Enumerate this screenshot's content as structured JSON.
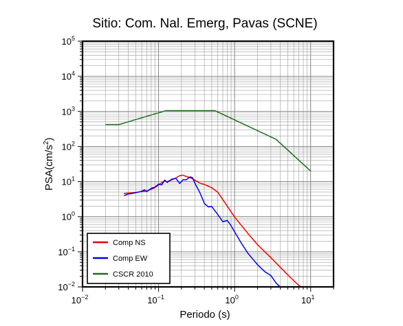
{
  "chart_data": {
    "type": "line",
    "title": "Sitio: Com. Nal. Emerg, Pavas (SCNE)",
    "xlabel": "Periodo (s)",
    "ylabel_main": "PSA(cm/s",
    "ylabel_sup": "2",
    "ylabel_tail": ")",
    "xscale": "log",
    "yscale": "log",
    "xlim": [
      0.01,
      20
    ],
    "ylim": [
      0.01,
      100000
    ],
    "grid": true,
    "legend_position": "bottom-left",
    "x_tick_labels": [
      {
        "exp": -2,
        "base": "10",
        "sup": "−2"
      },
      {
        "exp": -1,
        "base": "10",
        "sup": "−1"
      },
      {
        "exp": 0,
        "base": "10",
        "sup": "0"
      },
      {
        "exp": 1,
        "base": "10",
        "sup": "1"
      }
    ],
    "y_tick_labels": [
      {
        "exp": -2,
        "base": "10",
        "sup": "−2"
      },
      {
        "exp": -1,
        "base": "10",
        "sup": "−1"
      },
      {
        "exp": 0,
        "base": "10",
        "sup": "0"
      },
      {
        "exp": 1,
        "base": "10",
        "sup": "1"
      },
      {
        "exp": 2,
        "base": "10",
        "sup": "2"
      },
      {
        "exp": 3,
        "base": "10",
        "sup": "3"
      },
      {
        "exp": 4,
        "base": "10",
        "sup": "4"
      },
      {
        "exp": 5,
        "base": "10",
        "sup": "5"
      }
    ],
    "series": [
      {
        "name": "Comp NS",
        "color": "#ee0000",
        "x": [
          0.035,
          0.05,
          0.06,
          0.07,
          0.08,
          0.09,
          0.1,
          0.11,
          0.12,
          0.13,
          0.15,
          0.17,
          0.19,
          0.21,
          0.23,
          0.26,
          0.3,
          0.35,
          0.4,
          0.5,
          0.6,
          0.8,
          1.0,
          1.5,
          2.0,
          3.0,
          4.0,
          5.0,
          6.0,
          7.0,
          7.6
        ],
        "y": [
          4.6,
          4.9,
          5.2,
          5.4,
          6.0,
          6.8,
          8.0,
          9.3,
          10.2,
          10.0,
          11.2,
          12.8,
          14.8,
          15.2,
          14.0,
          13.0,
          11.0,
          9.0,
          8.3,
          6.7,
          5.0,
          2.0,
          0.98,
          0.33,
          0.16,
          0.068,
          0.036,
          0.022,
          0.015,
          0.011,
          0.0098
        ]
      },
      {
        "name": "Comp EW",
        "color": "#0000ee",
        "x": [
          0.035,
          0.04,
          0.05,
          0.06,
          0.065,
          0.07,
          0.08,
          0.09,
          0.1,
          0.11,
          0.12,
          0.13,
          0.15,
          0.17,
          0.19,
          0.21,
          0.23,
          0.26,
          0.28,
          0.3,
          0.35,
          0.4,
          0.45,
          0.5,
          0.6,
          0.7,
          0.8,
          0.9,
          1.0,
          1.2,
          1.5,
          2.0,
          2.5,
          3.0,
          3.5,
          4.0
        ],
        "y": [
          4.0,
          4.4,
          4.8,
          5.3,
          5.8,
          5.2,
          6.4,
          7.0,
          8.5,
          8.0,
          11.0,
          9.5,
          11.8,
          12.2,
          8.8,
          11.3,
          11.2,
          13.6,
          12.8,
          9.0,
          4.8,
          2.4,
          1.9,
          1.95,
          1.15,
          0.72,
          0.78,
          0.55,
          0.37,
          0.19,
          0.09,
          0.043,
          0.027,
          0.021,
          0.013,
          0.0098
        ]
      },
      {
        "name": "CSCR 2010",
        "color": "#1a6b1a",
        "x": [
          0.02,
          0.03,
          0.125,
          0.55,
          3.5,
          10.0
        ],
        "y": [
          420,
          420,
          1050,
          1050,
          160,
          20
        ]
      }
    ]
  }
}
